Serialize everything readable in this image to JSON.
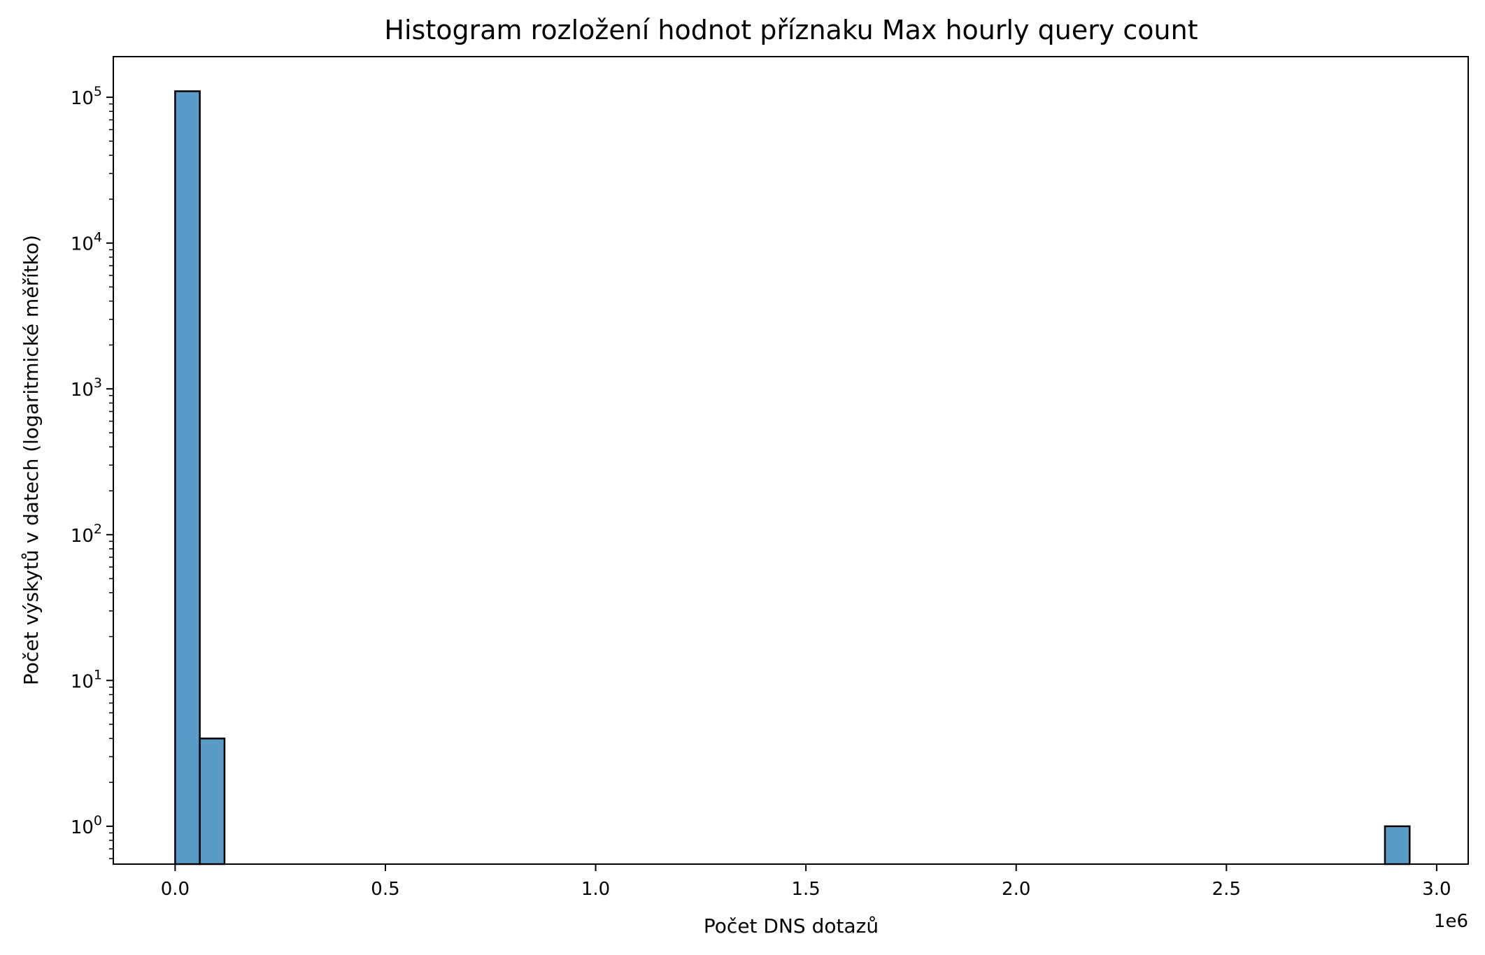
{
  "chart_data": {
    "type": "bar",
    "title": "Histogram rozložení hodnot příznaku Max hourly query count",
    "xlabel": "Počet DNS dotazů",
    "ylabel": "Počet výskytů v datech (logaritmické měřítko)",
    "x_offset_label": "1e6",
    "x_scale": "linear",
    "y_scale": "log",
    "xlim": [
      -0.147,
      3.075
    ],
    "ylim": [
      0.55,
      190000
    ],
    "x_ticks": [
      0.0,
      0.5,
      1.0,
      1.5,
      2.0,
      2.5,
      3.0
    ],
    "x_tick_labels": [
      "0.0",
      "0.5",
      "1.0",
      "1.5",
      "2.0",
      "2.5",
      "3.0"
    ],
    "y_ticks": [
      1,
      10,
      100,
      1000,
      10000,
      100000
    ],
    "y_tick_labels": [
      {
        "base": "10",
        "exp": "0"
      },
      {
        "base": "10",
        "exp": "1"
      },
      {
        "base": "10",
        "exp": "2"
      },
      {
        "base": "10",
        "exp": "3"
      },
      {
        "base": "10",
        "exp": "4"
      },
      {
        "base": "10",
        "exp": "5"
      }
    ],
    "bar_color": "#5b9bc8",
    "edge_color": "#000000",
    "bins": [
      {
        "x_start": 0.0,
        "x_end": 0.0587,
        "count": 110000
      },
      {
        "x_start": 0.0587,
        "x_end": 0.1174,
        "count": 4
      },
      {
        "x_start": 2.877,
        "x_end": 2.9357,
        "count": 1
      }
    ],
    "grid": false,
    "legend": "none"
  }
}
